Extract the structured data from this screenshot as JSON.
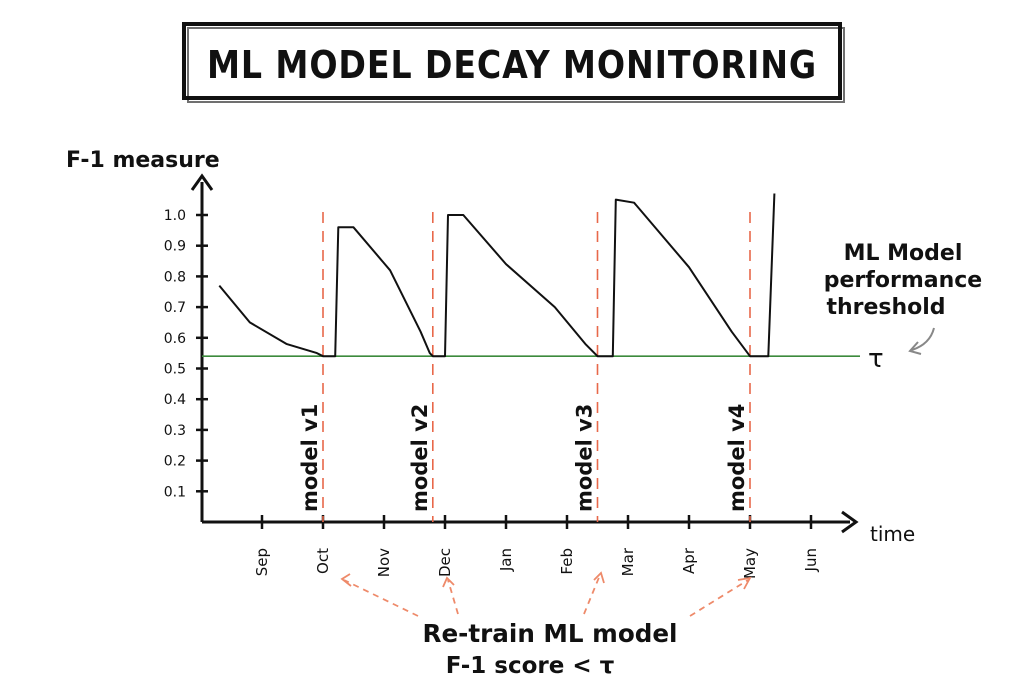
{
  "title": "ML MODEL DECAY  MONITORING",
  "colors": {
    "ink": "#111111",
    "threshold_line": "#3c8a3c",
    "threshold_label": "#2f7d3b",
    "retrain_marker": "#e8684a",
    "condition_text": "#f05a2a",
    "retrain_arrow": "#ee8a6a"
  },
  "annotations": {
    "threshold_label_lines": [
      "ML Model",
      "performance",
      "threshold"
    ],
    "tau": "τ",
    "retrain_label": "Re-train  ML model",
    "retrain_condition": "F-1 score < τ",
    "model_versions": [
      "model v1",
      "model v2",
      "model v3",
      "model v4"
    ]
  },
  "chart_data": {
    "type": "line",
    "title": "ML MODEL DECAY  MONITORING",
    "xlabel": "time",
    "ylabel": "F-1 measure",
    "x_ticks": [
      "Sep",
      "Oct",
      "Nov",
      "Dec",
      "Jan",
      "Feb",
      "Mar",
      "Apr",
      "May",
      "Jun"
    ],
    "y_ticks": [
      "1.0",
      "0.9",
      "0.8",
      "0.7",
      "0.6",
      "0.5",
      "0.4",
      "0.3",
      "0.2",
      "0.1"
    ],
    "ylim": [
      0,
      1.1
    ],
    "xlim": [
      -0.7,
      9.8
    ],
    "threshold": 0.54,
    "retrain_points": [
      1.0,
      2.8,
      5.5,
      8.0
    ],
    "series": [
      {
        "points": [
          [
            -0.7,
            0.77
          ],
          [
            -0.2,
            0.65
          ],
          [
            0.4,
            0.58
          ],
          [
            0.9,
            0.55
          ],
          [
            1.0,
            0.54
          ],
          [
            1.2,
            0.54
          ],
          [
            1.25,
            0.96
          ],
          [
            1.5,
            0.96
          ],
          [
            2.1,
            0.82
          ],
          [
            2.6,
            0.62
          ],
          [
            2.75,
            0.55
          ],
          [
            2.8,
            0.54
          ],
          [
            3.0,
            0.54
          ],
          [
            3.05,
            1.0
          ],
          [
            3.3,
            1.0
          ],
          [
            4.0,
            0.84
          ],
          [
            4.8,
            0.7
          ],
          [
            5.3,
            0.58
          ],
          [
            5.5,
            0.54
          ],
          [
            5.75,
            0.54
          ],
          [
            5.8,
            1.05
          ],
          [
            6.1,
            1.04
          ],
          [
            7.0,
            0.83
          ],
          [
            7.7,
            0.62
          ],
          [
            8.0,
            0.54
          ],
          [
            8.3,
            0.54
          ],
          [
            8.4,
            1.07
          ]
        ]
      }
    ],
    "grid": false,
    "legend": "none"
  }
}
